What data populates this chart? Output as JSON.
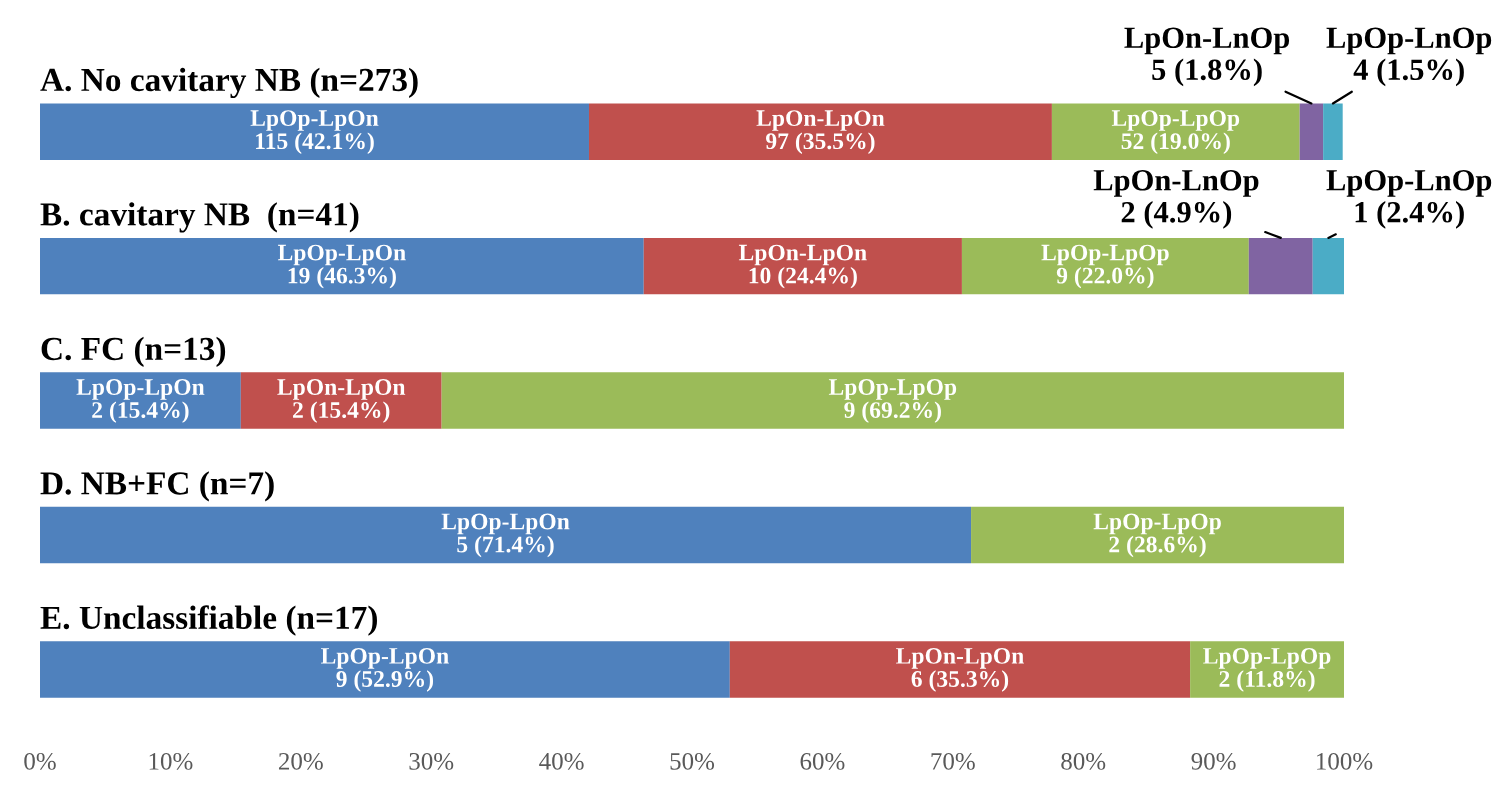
{
  "chart_data": {
    "type": "bar",
    "orientation": "horizontal",
    "stacked": true,
    "legend": false,
    "grid": false,
    "categories": [
      "A. No cavitary NB (n=273)",
      "B. cavitary NB  (n=41)",
      "C. FC (n=13)",
      "D. NB+FC (n=7)",
      "E. Unclassifiable (n=17)"
    ],
    "xlim": [
      0,
      100
    ],
    "xticks": [
      {
        "value": 0,
        "label": "0%"
      },
      {
        "value": 10,
        "label": "10%"
      },
      {
        "value": 20,
        "label": "20%"
      },
      {
        "value": 30,
        "label": "30%"
      },
      {
        "value": 40,
        "label": "40%"
      },
      {
        "value": 50,
        "label": "50%"
      },
      {
        "value": 60,
        "label": "60%"
      },
      {
        "value": 70,
        "label": "70%"
      },
      {
        "value": 80,
        "label": "80%"
      },
      {
        "value": 90,
        "label": "90%"
      },
      {
        "value": 100,
        "label": "100%"
      }
    ],
    "series": [
      {
        "name": "LpOp-LpOn",
        "color": "#4f81bd",
        "values": [
          42.1,
          46.3,
          15.4,
          71.4,
          52.9
        ],
        "value_labels": [
          "115 (42.1%)",
          "19 (46.3%)",
          "2 (15.4%)",
          "5 (71.4%)",
          "9 (52.9%)"
        ]
      },
      {
        "name": "LpOn-LpOn",
        "color": "#c0504d",
        "values": [
          35.5,
          24.4,
          15.4,
          null,
          35.3
        ],
        "value_labels": [
          "97 (35.5%)",
          "10 (24.4%)",
          "2 (15.4%)",
          null,
          "6 (35.3%)"
        ]
      },
      {
        "name": "LpOp-LpOp",
        "color": "#9bbb59",
        "values": [
          19.0,
          22.0,
          69.2,
          28.6,
          11.8
        ],
        "value_labels": [
          "52 (19.0%)",
          "9 (22.0%)",
          "9 (69.2%)",
          "2 (28.6%)",
          "2 (11.8%)"
        ]
      },
      {
        "name": "LpOn-LnOp",
        "color": "#8064a2",
        "values": [
          1.8,
          4.9,
          null,
          null,
          null
        ],
        "value_labels": [
          "5 (1.8%)",
          "2 (4.9%)",
          null,
          null,
          null
        ]
      },
      {
        "name": "LpOp-LnOp",
        "color": "#4bacc6",
        "values": [
          1.5,
          2.4,
          null,
          null,
          null
        ],
        "value_labels": [
          "4 (1.5%)",
          "1 (2.4%)",
          null,
          null,
          null
        ]
      }
    ]
  }
}
